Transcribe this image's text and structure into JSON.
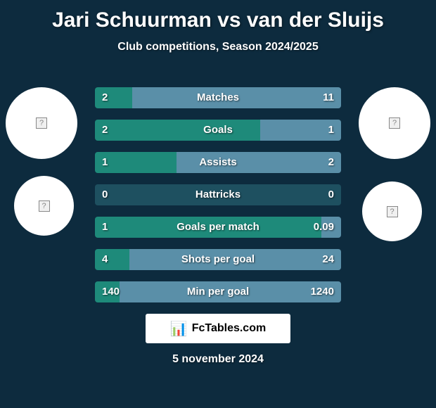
{
  "title": "Jari Schuurman vs van der Sluijs",
  "subtitle": "Club competitions, Season 2024/2025",
  "colors": {
    "background": "#0d2b3e",
    "left_bar": "#1e8a7a",
    "right_bar": "#5a8fa8",
    "text": "#ffffff",
    "circle_bg": "#ffffff"
  },
  "avatars": {
    "placeholder_glyph": "?"
  },
  "stats": [
    {
      "label": "Matches",
      "left_val": "2",
      "right_val": "11",
      "left_num": 2,
      "right_num": 11,
      "left_pct": 15,
      "right_pct": 85
    },
    {
      "label": "Goals",
      "left_val": "2",
      "right_val": "1",
      "left_num": 2,
      "right_num": 1,
      "left_pct": 67,
      "right_pct": 33
    },
    {
      "label": "Assists",
      "left_val": "1",
      "right_val": "2",
      "left_num": 1,
      "right_num": 2,
      "left_pct": 33,
      "right_pct": 67
    },
    {
      "label": "Hattricks",
      "left_val": "0",
      "right_val": "0",
      "left_num": 0,
      "right_num": 0,
      "left_pct": 50,
      "right_pct": 50
    },
    {
      "label": "Goals per match",
      "left_val": "1",
      "right_val": "0.09",
      "left_num": 1,
      "right_num": 0.09,
      "left_pct": 92,
      "right_pct": 8
    },
    {
      "label": "Shots per goal",
      "left_val": "4",
      "right_val": "24",
      "left_num": 4,
      "right_num": 24,
      "left_pct": 14,
      "right_pct": 86
    },
    {
      "label": "Min per goal",
      "left_val": "140",
      "right_val": "1240",
      "left_num": 140,
      "right_num": 1240,
      "left_pct": 10,
      "right_pct": 90
    }
  ],
  "hattricks_fill_color": "#1e5060",
  "brand": {
    "icon": "📊",
    "text": "FcTables.com"
  },
  "date": "5 november 2024"
}
